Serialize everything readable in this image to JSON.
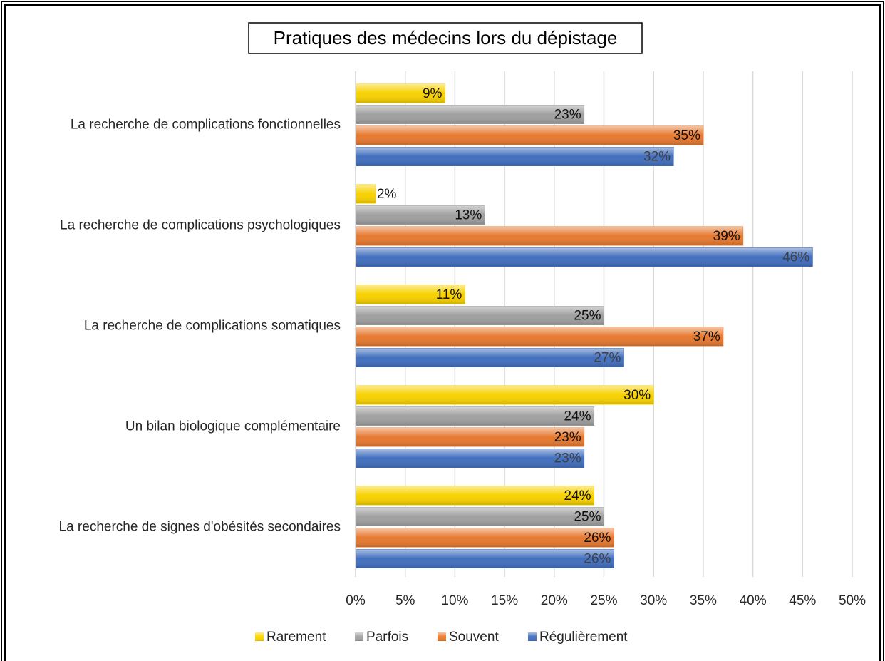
{
  "chart_data": {
    "type": "bar",
    "orientation": "horizontal",
    "title": "Pratiques des médecins lors du dépistage",
    "categories": [
      "La recherche de complications fonctionnelles",
      "La recherche de complications psychologiques",
      "La recherche de complications somatiques",
      "Un bilan biologique complémentaire",
      "La recherche de signes d'obésités secondaires"
    ],
    "series": [
      {
        "name": "Rarement",
        "color": "#ffd700",
        "values": [
          9,
          2,
          11,
          30,
          24
        ],
        "value_labels": [
          "9%",
          "2%",
          "11%",
          "30%",
          "24%"
        ]
      },
      {
        "name": "Parfois",
        "color": "#a5a5a5",
        "values": [
          23,
          13,
          25,
          24,
          25
        ],
        "value_labels": [
          "23%",
          "13%",
          "25%",
          "24%",
          "25%"
        ]
      },
      {
        "name": "Souvent",
        "color": "#ed7d31",
        "values": [
          35,
          39,
          37,
          23,
          26
        ],
        "value_labels": [
          "35%",
          "39%",
          "37%",
          "23%",
          "26%"
        ]
      },
      {
        "name": "Régulièrement",
        "color": "#4472c4",
        "values": [
          32,
          46,
          27,
          23,
          26
        ],
        "value_labels": [
          "32%",
          "46%",
          "27%",
          "23%",
          "26%"
        ]
      }
    ],
    "xlim": [
      0,
      50
    ],
    "xticks": [
      {
        "value": 0,
        "label": "0%"
      },
      {
        "value": 5,
        "label": "5%"
      },
      {
        "value": 10,
        "label": "10%"
      },
      {
        "value": 15,
        "label": "15%"
      },
      {
        "value": 20,
        "label": "20%"
      },
      {
        "value": 25,
        "label": "25%"
      },
      {
        "value": 30,
        "label": "30%"
      },
      {
        "value": 35,
        "label": "35%"
      },
      {
        "value": 40,
        "label": "40%"
      },
      {
        "value": 45,
        "label": "45%"
      },
      {
        "value": 50,
        "label": "50%"
      }
    ],
    "grid": true,
    "legend": "bottom"
  }
}
